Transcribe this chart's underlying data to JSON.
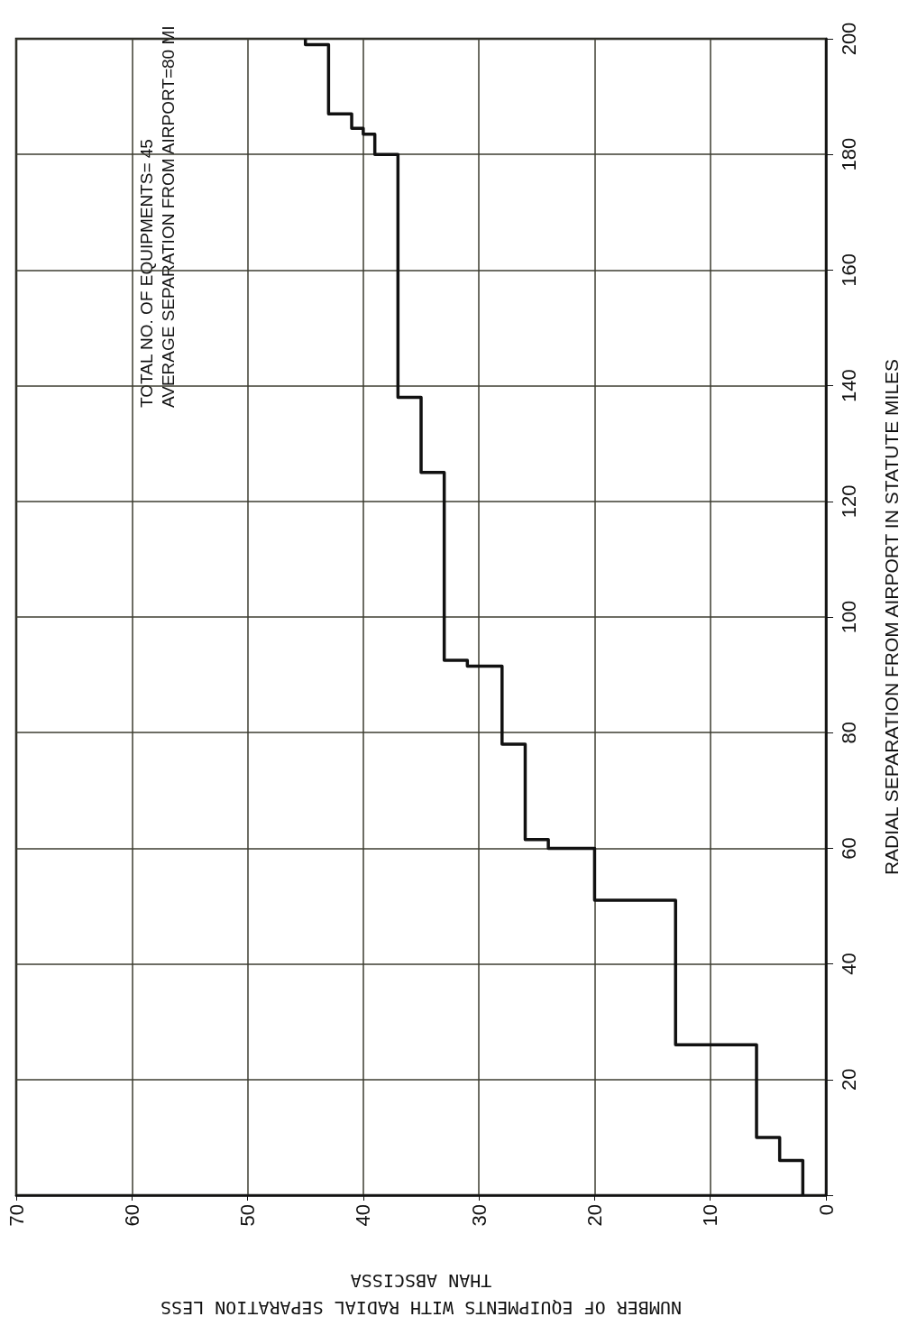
{
  "chart_data": {
    "type": "line",
    "xlabel": "NUMBER OF EQUIPMENTS WITH RADIAL SEPARATION LESS\nTHAN ABSCISSA",
    "ylabel": "RADIAL SEPARATION FROM AIRPORT IN STATUTE MILES",
    "annotations": [
      "TOTAL NO. OF EQUIPMENTS= 45\nAVERAGE SEPARATION FROM AIRPORT=80 MI"
    ],
    "series": [
      {
        "color": "#111111",
        "x": [
          2,
          2,
          4,
          4,
          6,
          6,
          13,
          13,
          20,
          20,
          24,
          24,
          26,
          26,
          28,
          28,
          31,
          31,
          33,
          33,
          35,
          35,
          37,
          37,
          39,
          39,
          40,
          40,
          41,
          41,
          43,
          43,
          45,
          45
        ],
        "values": [
          0,
          6,
          6,
          10,
          10,
          26,
          26,
          51,
          51,
          60,
          60,
          61.5,
          61.5,
          78,
          78,
          91.5,
          91.5,
          92.5,
          92.5,
          125,
          125,
          138,
          138,
          180,
          180,
          183.5,
          183.5,
          184.5,
          184.5,
          187,
          187,
          199,
          199,
          200
        ]
      }
    ],
    "xlim": [
      70,
      0
    ],
    "xticks": [
      0,
      10,
      20,
      30,
      40,
      50,
      60,
      70
    ],
    "ylim": [
      0,
      200
    ],
    "yticks": [
      {
        "value": 0,
        "label": null
      },
      20,
      40,
      60,
      80,
      100,
      120,
      140,
      160,
      180,
      200
    ],
    "grid": true,
    "marker": "none",
    "line_style": "solid"
  }
}
